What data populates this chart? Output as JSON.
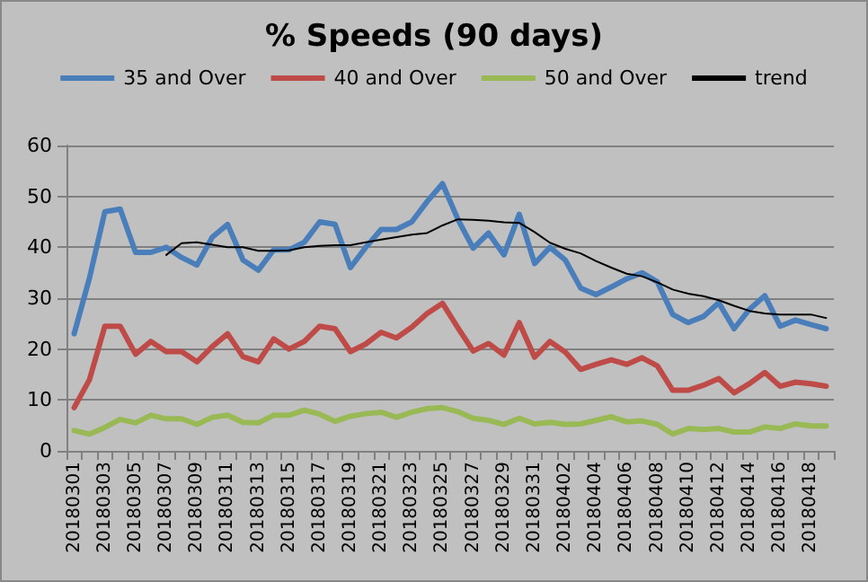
{
  "chart_data": {
    "type": "line",
    "title": "% Speeds (90 days)",
    "categories": [
      "20180301",
      null,
      "20180303",
      null,
      "20180305",
      null,
      "20180307",
      null,
      "20180309",
      null,
      "20180311",
      null,
      "20180313",
      null,
      "20180315",
      null,
      "20180317",
      null,
      "20180319",
      null,
      "20180321",
      null,
      "20180323",
      null,
      "20180325",
      null,
      "20180327",
      null,
      "20180329",
      null,
      "20180331",
      null,
      "20180402",
      null,
      "20180404",
      null,
      "20180406",
      null,
      "20180408",
      null,
      "20180410",
      null,
      "20180412",
      null,
      "20180414",
      null,
      "20180416",
      null,
      "20180418",
      null
    ],
    "series": [
      {
        "name": "35 and Over",
        "color": "#4a7ebb",
        "values": [
          23,
          34,
          47,
          47.5,
          39,
          39,
          40,
          38,
          36.5,
          42,
          44.5,
          37.5,
          35.5,
          39.5,
          39.5,
          41,
          45,
          44.5,
          36,
          40,
          43.5,
          43.5,
          45,
          49,
          52.5,
          45.5,
          39.8,
          42.8,
          38.5,
          46.5,
          36.8,
          40,
          37.5,
          32,
          30.7,
          32.2,
          33.8,
          35,
          33.2,
          26.8,
          25.2,
          26.4,
          29.1,
          24,
          27.8,
          30.5,
          24.5,
          25.7,
          24.8,
          24
        ]
      },
      {
        "name": "40 and Over",
        "color": "#be4b48",
        "values": [
          8.5,
          14,
          24.5,
          24.5,
          19,
          21.5,
          19.5,
          19.5,
          17.5,
          20.5,
          23,
          18.5,
          17.5,
          22,
          20,
          21.5,
          24.5,
          24,
          19.5,
          21,
          23.3,
          22.2,
          24.3,
          27,
          29,
          24.2,
          19.6,
          21.1,
          18.8,
          25.2,
          18.4,
          21.5,
          19.4,
          16,
          17,
          17.9,
          17,
          18.3,
          16.7,
          11.9,
          11.9,
          12.9,
          14.2,
          11.4,
          13.2,
          15.4,
          12.7,
          13.5,
          13.2,
          12.7
        ]
      },
      {
        "name": "50 and Over",
        "color": "#98b954",
        "values": [
          4,
          3.3,
          4.6,
          6.2,
          5.5,
          7,
          6.3,
          6.3,
          5.2,
          6.6,
          7,
          5.6,
          5.5,
          7,
          7,
          8,
          7.2,
          5.8,
          6.8,
          7.3,
          7.6,
          6.6,
          7.6,
          8.3,
          8.5,
          7.7,
          6.4,
          6,
          5.2,
          6.4,
          5.3,
          5.6,
          5.2,
          5.3,
          6,
          6.7,
          5.7,
          5.9,
          5.2,
          3.3,
          4.4,
          4.2,
          4.4,
          3.7,
          3.7,
          4.7,
          4.4,
          5.3,
          4.9,
          4.9
        ]
      },
      {
        "name": "trend",
        "color": "#000000",
        "values": [
          null,
          null,
          null,
          null,
          null,
          null,
          38.5,
          40.8,
          41,
          40.5,
          40,
          40,
          39.3,
          39.3,
          39.4,
          40,
          40.3,
          40.4,
          40.4,
          41,
          41.5,
          42,
          42.5,
          42.8,
          44.3,
          45.5,
          45.4,
          45.2,
          44.9,
          44.8,
          43,
          40.9,
          39.7,
          38.8,
          37.3,
          36,
          34.8,
          34.3,
          33.1,
          31.7,
          30.9,
          30.4,
          29.6,
          28.5,
          27.5,
          27,
          26.8,
          26.8,
          26.8,
          26.1
        ]
      }
    ],
    "ylim": [
      0,
      60
    ],
    "yticks": [
      0,
      10,
      20,
      30,
      40,
      50,
      60
    ],
    "grid": "y",
    "legend": "top",
    "marker": "none",
    "line_style": "solid"
  }
}
